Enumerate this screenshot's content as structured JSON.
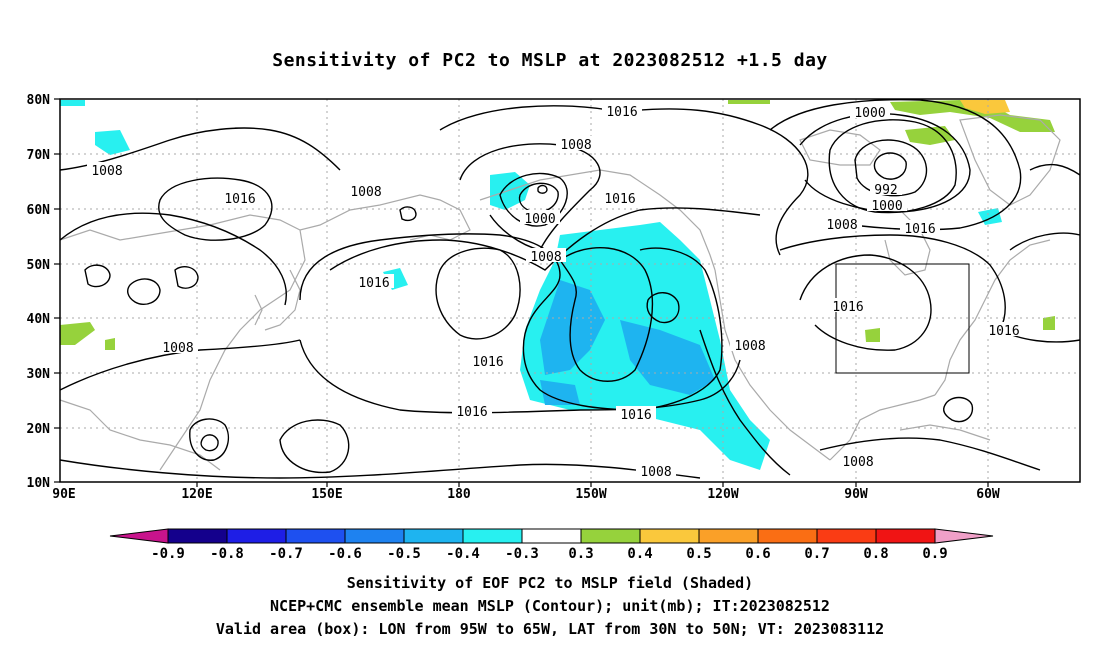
{
  "title": "Sensitivity of PC2 to MSLP at 2023082512 +1.5 day",
  "map": {
    "lat_ticks": [
      "80N",
      "70N",
      "60N",
      "50N",
      "40N",
      "30N",
      "20N",
      "10N"
    ],
    "lon_ticks": [
      "90E",
      "120E",
      "150E",
      "180",
      "150W",
      "120W",
      "90W",
      "60W"
    ],
    "contour_labels": [
      "1016",
      "1008",
      "1008",
      "1016",
      "1008",
      "1008",
      "1000",
      "1016",
      "1008",
      "1016",
      "1016",
      "1008",
      "1016",
      "1008",
      "1016",
      "1000",
      "992",
      "1000",
      "1008",
      "1016",
      "1016",
      "1016",
      "1008",
      "1008"
    ],
    "valid_box": {
      "lon_from": "95W",
      "lon_to": "65W",
      "lat_from": "30N",
      "lat_to": "50N"
    }
  },
  "colorbar": {
    "labels": [
      "-0.9",
      "-0.8",
      "-0.7",
      "-0.6",
      "-0.5",
      "-0.4",
      "-0.3",
      "0.3",
      "0.4",
      "0.5",
      "0.6",
      "0.7",
      "0.8",
      "0.9"
    ],
    "colors": [
      "#14008c",
      "#1e1ee6",
      "#1e50f0",
      "#1e82f0",
      "#1eb4f0",
      "#28f0f0",
      "#ffffff",
      "#96d23c",
      "#fac83c",
      "#faa028",
      "#fa6e14",
      "#fa3c14",
      "#f01414"
    ],
    "low_tip_color": "#c8148c",
    "high_tip_color": "#f0a0c8"
  },
  "captions": {
    "line1": "Sensitivity of EOF PC2 to MSLP field (Shaded)",
    "line2": "NCEP+CMC ensemble mean MSLP (Contour); unit(mb); IT:2023082512",
    "line3": "Valid area (box): LON from 95W to 65W, LAT from 30N to 50N; VT: 2023083112"
  },
  "colors": {
    "cyan_shade": "#28f0f0",
    "light_blue_shade": "#1eb4f0",
    "green_shade": "#96d23c",
    "orange_shade": "#fac83c",
    "coast": "#aaaaaa"
  }
}
